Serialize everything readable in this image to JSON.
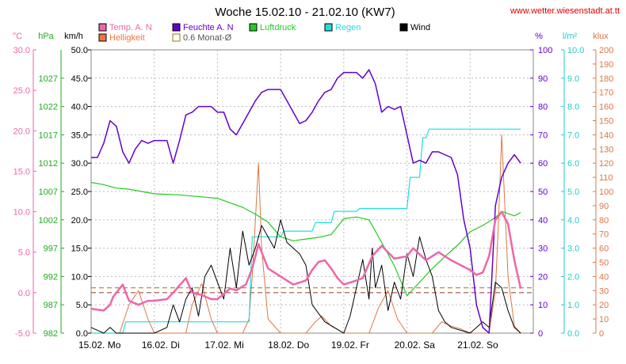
{
  "chart_data": {
    "type": "line",
    "title": "Woche 15.02.10 - 21.02.10 (KW7)",
    "source": "www.wetter.wiesenstadt.at.tt",
    "x_labels": [
      "15.02. Mo",
      "16.02. Di",
      "17.02. Mi",
      "18.02. Do",
      "19.02. Fr",
      "20.02. Sa",
      "21.02. So"
    ],
    "x_range_days": [
      0,
      7
    ],
    "grid": true,
    "axes": {
      "temp": {
        "unit": "°C",
        "color": "#ee66aa",
        "min": -5,
        "max": 30,
        "ticks": [
          "-5.0",
          "0.0",
          "5.0",
          "10.0",
          "15.0",
          "20.0",
          "25.0",
          "30.0"
        ]
      },
      "press": {
        "unit": "hPa",
        "color": "#22aa22",
        "min": 982,
        "max": 1032,
        "ticks": [
          "982",
          "987",
          "992",
          "997",
          "1002",
          "1007",
          "1012",
          "1017",
          "1022",
          "1027"
        ]
      },
      "wind": {
        "unit": "km/h",
        "color": "#000000",
        "min": 0,
        "max": 50,
        "ticks": [
          "0.0",
          "5.0",
          "10.0",
          "15.0",
          "20.0",
          "25.0",
          "30.0",
          "35.0",
          "40.0",
          "45.0",
          "50.0"
        ]
      },
      "hum": {
        "unit": "%",
        "color": "#6600cc",
        "min": 0,
        "max": 100,
        "ticks": [
          "0",
          "10",
          "20",
          "30",
          "40",
          "50",
          "60",
          "70",
          "80",
          "90",
          "100"
        ]
      },
      "rain": {
        "unit": "l/m²",
        "color": "#22cccc",
        "min": 0,
        "max": 10,
        "ticks": [
          "0.0",
          "1.0",
          "2.0",
          "3.0",
          "4.0",
          "5.0",
          "6.0",
          "7.0",
          "8.0",
          "9.0",
          "10.0"
        ]
      },
      "bright": {
        "unit": "klux",
        "color": "#dd7744",
        "min": 0,
        "max": 200,
        "ticks": [
          "0",
          "10",
          "20",
          "30",
          "40",
          "50",
          "60",
          "70",
          "80",
          "90",
          "100",
          "110",
          "120",
          "130",
          "140",
          "150",
          "160",
          "170",
          "180",
          "190",
          "200"
        ]
      }
    },
    "reference_lines": [
      {
        "name": "0.6 Monat-Ø",
        "axis": "wind",
        "value": 8.0,
        "color": "#997700"
      },
      {
        "axis": "temp",
        "value": 0.0,
        "color": "#993333"
      }
    ],
    "legend": [
      {
        "label": "Temp. A. N",
        "color": "#ee66aa"
      },
      {
        "label": "Feuchte A. N",
        "color": "#6600cc"
      },
      {
        "label": "Luftdruck",
        "color": "#22cc22"
      },
      {
        "label": "Regen",
        "color": "#22dddd"
      },
      {
        "label": "Wind",
        "color": "#000000"
      },
      {
        "label": "Helligkeit",
        "color": "#ee7744"
      },
      {
        "label": "0.6 Monat-Ø",
        "color": "#ffffff",
        "border": "#997700"
      }
    ],
    "series": [
      {
        "name": "Temp. A. N",
        "axis": "temp",
        "color": "#ee66aa",
        "x": [
          0,
          0.2,
          0.3,
          0.35,
          0.5,
          0.6,
          0.75,
          0.9,
          1.0,
          1.2,
          1.3,
          1.5,
          1.6,
          1.75,
          1.9,
          2.0,
          2.2,
          2.3,
          2.45,
          2.55,
          2.6,
          2.65,
          2.7,
          2.8,
          3.0,
          3.2,
          3.4,
          3.5,
          3.6,
          3.7,
          3.8,
          3.9,
          4.0,
          4.2,
          4.3,
          4.45,
          4.6,
          4.8,
          5.0,
          5.1,
          5.3,
          5.5,
          5.7,
          5.9,
          6.0,
          6.1,
          6.2,
          6.3,
          6.4,
          6.5,
          6.6,
          6.7,
          6.8
        ],
        "y": [
          -2,
          -2.2,
          -1.5,
          -0.5,
          1,
          -1,
          -1.5,
          -1,
          -1,
          -0.8,
          0,
          1.8,
          0,
          -0.3,
          -0.8,
          -0.8,
          0.5,
          0.3,
          1,
          3,
          4.5,
          6,
          5,
          3,
          2,
          1,
          1.5,
          2.8,
          3.8,
          4,
          3,
          1.8,
          1,
          1.5,
          1.8,
          4.5,
          5.8,
          4.2,
          4.5,
          5.5,
          4,
          5,
          4,
          3.2,
          2.8,
          2.2,
          2.5,
          4.5,
          9,
          10,
          8.5,
          4,
          0.5
        ]
      },
      {
        "name": "Feuchte A. N",
        "axis": "hum",
        "color": "#6600cc",
        "x": [
          0,
          0.1,
          0.2,
          0.3,
          0.4,
          0.5,
          0.6,
          0.7,
          0.8,
          0.9,
          1.0,
          1.1,
          1.2,
          1.3,
          1.4,
          1.5,
          1.6,
          1.7,
          1.8,
          1.9,
          2.0,
          2.1,
          2.2,
          2.3,
          2.4,
          2.5,
          2.6,
          2.7,
          2.8,
          2.9,
          3.0,
          3.1,
          3.2,
          3.3,
          3.4,
          3.5,
          3.6,
          3.7,
          3.8,
          3.9,
          4.0,
          4.1,
          4.2,
          4.3,
          4.4,
          4.5,
          4.6,
          4.7,
          4.8,
          4.9,
          5.0,
          5.1,
          5.2,
          5.3,
          5.4,
          5.5,
          5.6,
          5.7,
          5.8,
          5.9,
          6.0,
          6.1,
          6.2,
          6.3,
          6.4,
          6.5,
          6.6,
          6.7,
          6.8
        ],
        "y": [
          62,
          62,
          67,
          75,
          73,
          64,
          60,
          65,
          68,
          67,
          68,
          68,
          68,
          60,
          68,
          77,
          78,
          80,
          80,
          80,
          78,
          78,
          72,
          70,
          74,
          78,
          82,
          85,
          86,
          86,
          86,
          82,
          78,
          74,
          75,
          78,
          82,
          85,
          86,
          90,
          92,
          92,
          92,
          90,
          93,
          88,
          78,
          80,
          79,
          80,
          70,
          60,
          61,
          60,
          64,
          64,
          63,
          62,
          56,
          40,
          30,
          10,
          2,
          0,
          45,
          55,
          60,
          63,
          60
        ]
      },
      {
        "name": "Luftdruck",
        "axis": "press",
        "color": "#22cc22",
        "x": [
          0,
          0.2,
          0.4,
          0.6,
          0.8,
          1.0,
          1.2,
          1.4,
          1.6,
          1.8,
          2.0,
          2.2,
          2.4,
          2.6,
          2.8,
          3.0,
          3.2,
          3.4,
          3.6,
          3.8,
          4.0,
          4.2,
          4.4,
          4.6,
          4.8,
          5.0,
          5.2,
          5.4,
          5.6,
          5.8,
          6.0,
          6.2,
          6.4,
          6.5,
          6.7,
          6.8
        ],
        "y": [
          1008.6,
          1008.2,
          1007.6,
          1007.4,
          1007,
          1006.6,
          1006.5,
          1006.4,
          1006.2,
          1006,
          1005.8,
          1005,
          1004.2,
          1003,
          1001.6,
          999,
          998.3,
          998.6,
          998.9,
          999.4,
          1002.2,
          1002.5,
          1002,
          998,
          993.9,
          988.6,
          991,
          993.4,
          995.5,
          997.5,
          999.9,
          1001,
          1002.4,
          1003.5,
          1002.7,
          1003.3
        ]
      },
      {
        "name": "Regen",
        "axis": "rain",
        "color": "#22dddd",
        "x": [
          0,
          0.5,
          0.55,
          2.5,
          2.55,
          3.0,
          3.05,
          3.5,
          3.55,
          3.8,
          3.85,
          4.2,
          4.25,
          4.8,
          4.85,
          5.0,
          5.05,
          5.2,
          5.25,
          5.3,
          5.35,
          6.8
        ],
        "y": [
          0,
          0,
          0.4,
          0.4,
          3.4,
          3.4,
          3.6,
          3.6,
          3.9,
          3.9,
          4.3,
          4.3,
          4.4,
          4.4,
          4.4,
          4.4,
          5.5,
          5.5,
          6.9,
          6.9,
          7.2,
          7.2
        ]
      },
      {
        "name": "Wind",
        "axis": "wind",
        "color": "#000000",
        "x": [
          0,
          0.1,
          0.2,
          0.3,
          0.4,
          0.5,
          1.0,
          1.2,
          1.3,
          1.4,
          1.5,
          1.6,
          1.7,
          1.8,
          1.9,
          2.0,
          2.1,
          2.2,
          2.3,
          2.4,
          2.5,
          2.6,
          2.7,
          2.8,
          2.9,
          3.0,
          3.1,
          3.2,
          3.3,
          3.4,
          3.5,
          3.7,
          4.0,
          4.1,
          4.2,
          4.3,
          4.4,
          4.45,
          4.5,
          4.6,
          4.7,
          4.8,
          4.9,
          5.0,
          5.1,
          5.2,
          5.3,
          5.4,
          5.5,
          5.6,
          5.7,
          6.0,
          6.2,
          6.3,
          6.4,
          6.5,
          6.6,
          6.7,
          6.8
        ],
        "y": [
          1,
          0.5,
          0,
          1,
          0,
          0,
          0,
          1,
          5,
          2,
          6,
          8,
          3,
          10,
          12,
          9,
          6,
          15,
          8,
          18,
          12,
          15,
          19,
          17,
          15,
          20,
          16,
          15,
          14,
          12,
          5,
          2,
          0,
          3,
          8,
          13,
          6,
          15,
          8,
          12,
          4,
          9,
          6,
          14,
          10,
          17,
          13,
          10,
          4,
          2,
          1,
          0,
          2,
          1,
          9,
          8,
          4,
          1,
          0
        ]
      },
      {
        "name": "Helligkeit",
        "axis": "bright",
        "color": "#dd7744",
        "x": [
          0,
          0.45,
          0.6,
          0.75,
          0.9,
          1.0,
          1.5,
          1.6,
          1.75,
          1.9,
          2.0,
          2.4,
          2.5,
          2.55,
          2.6,
          2.65,
          2.7,
          2.8,
          3.0,
          3.4,
          3.55,
          3.65,
          3.8,
          4.0,
          4.4,
          4.55,
          4.7,
          4.85,
          5.0,
          5.4,
          5.55,
          5.7,
          5.85,
          6.0,
          6.3,
          6.4,
          6.45,
          6.5,
          6.55,
          6.6,
          6.7,
          6.8
        ],
        "y": [
          0,
          0,
          20,
          30,
          10,
          0,
          0,
          20,
          35,
          10,
          0,
          0,
          10,
          40,
          80,
          120,
          60,
          10,
          0,
          0,
          8,
          12,
          5,
          0,
          0,
          18,
          30,
          10,
          0,
          0,
          8,
          5,
          3,
          0,
          0,
          30,
          80,
          140,
          90,
          40,
          5,
          0
        ]
      }
    ]
  }
}
